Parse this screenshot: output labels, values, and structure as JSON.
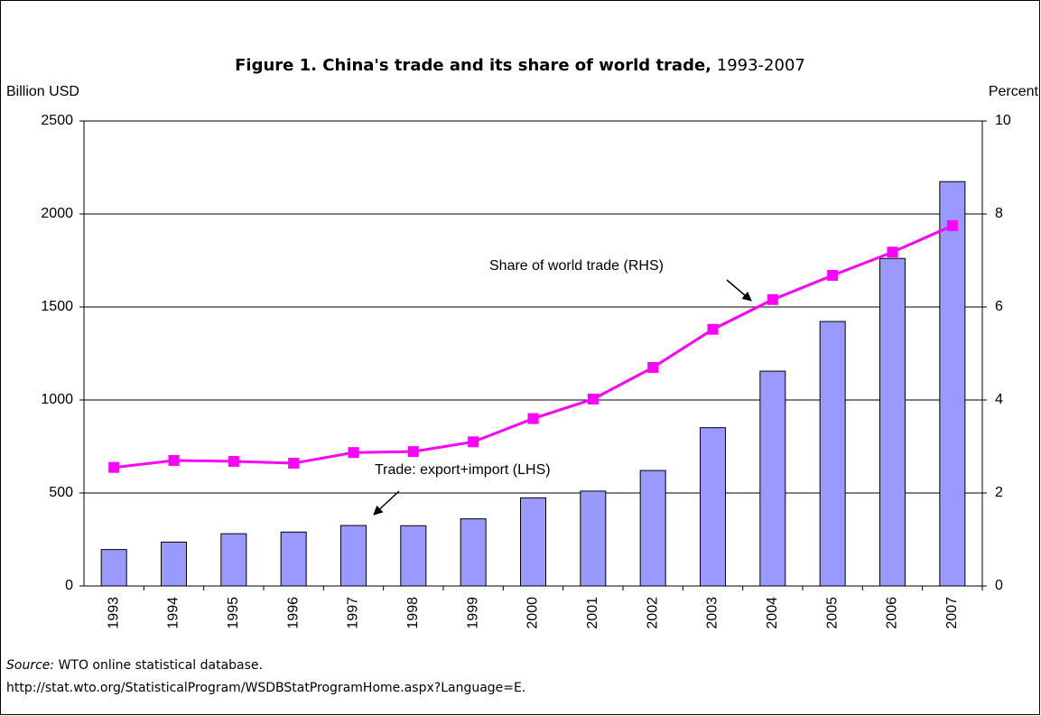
{
  "chart_data": {
    "type": "bar_line",
    "title": "Figure 1. China's trade and its share of world trade,",
    "title_years": "1993-2007",
    "ylabel": "Billion USD",
    "y2label": "Percent",
    "categories": [
      "1993",
      "1994",
      "1995",
      "1996",
      "1997",
      "1998",
      "1999",
      "2000",
      "2001",
      "2002",
      "2003",
      "2004",
      "2005",
      "2006",
      "2007"
    ],
    "series": [
      {
        "name": "Trade: export+import (LHS)",
        "type": "bar",
        "color": "#9999ff",
        "axis": "y",
        "values": [
          196,
          236,
          281,
          290,
          325,
          324,
          361,
          474,
          510,
          621,
          851,
          1155,
          1422,
          1761,
          2174
        ]
      },
      {
        "name": "Share of world trade (RHS)",
        "type": "line",
        "color": "#ff00ff",
        "axis": "y2",
        "values": [
          2.55,
          2.7,
          2.68,
          2.64,
          2.87,
          2.89,
          3.1,
          3.6,
          4.02,
          4.7,
          5.52,
          6.16,
          6.68,
          7.18,
          7.75
        ]
      }
    ],
    "ylim": [
      0,
      2500
    ],
    "yticks": [
      0,
      500,
      1000,
      1500,
      2000,
      2500
    ],
    "y2lim": [
      0,
      10
    ],
    "y2ticks": [
      0,
      2,
      4,
      6,
      8,
      10
    ],
    "grid": true,
    "source_label": "Source:",
    "source_text": "WTO online statistical database.",
    "source_url": "http://stat.wto.org/StatisticalProgram/WSDBStatProgramHome.aspx?Language=E."
  }
}
